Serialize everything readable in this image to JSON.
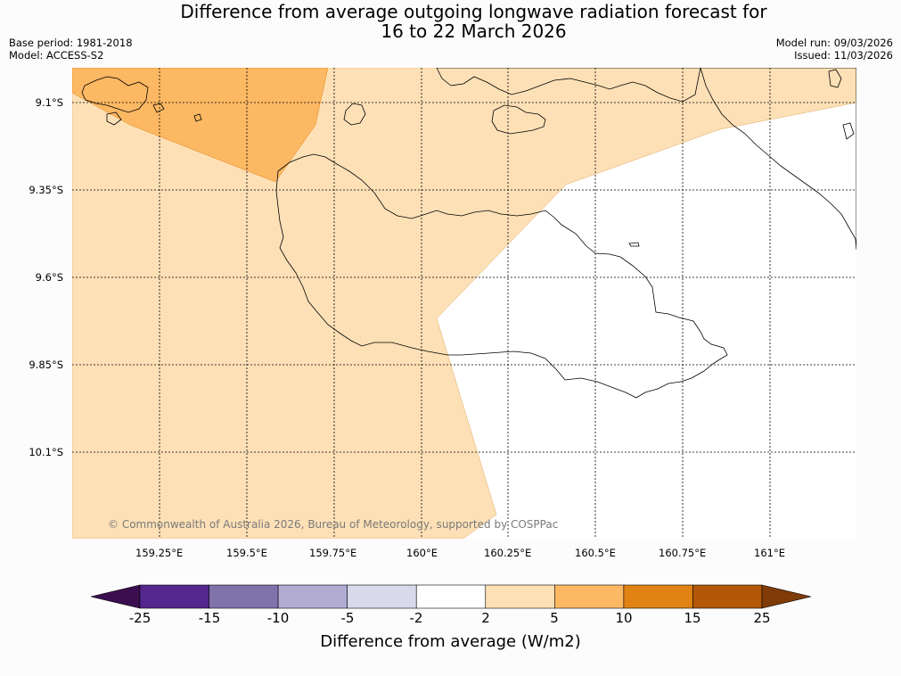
{
  "title_line1": "Difference from average outgoing longwave radiation forecast for",
  "title_line2": "16 to 22 March 2026",
  "base_period": "Base period: 1981-2018",
  "model": "Model: ACCESS-S2",
  "model_run": "Model run: 09/03/2026",
  "issued": "Issued: 11/03/2026",
  "copyright": "© Commonwealth of Australia 2026, Bureau of Meteorology, supported by COSPPac",
  "lat_labels": [
    "9.1°S",
    "9.35°S",
    "9.6°S",
    "9.85°S",
    "10.1°S"
  ],
  "lon_labels": [
    "159.25°E",
    "159.5°E",
    "159.75°E",
    "160°E",
    "160.25°E",
    "160.5°E",
    "160.75°E",
    "161°E"
  ],
  "colorbar": {
    "title": "Difference from average (W/m2)",
    "labels": [
      "-25",
      "-15",
      "-10",
      "-5",
      "-2",
      "2",
      "5",
      "10",
      "15",
      "25"
    ],
    "colors": [
      "#3b0f4f",
      "#54278f",
      "#8073ac",
      "#b2abd2",
      "#d8daeb",
      "#ffffff",
      "#fee0b6",
      "#fdb863",
      "#e08214",
      "#b35806",
      "#7f3b08"
    ]
  },
  "fill_colors": {
    "light_orange": "#fde0b6",
    "mid_orange": "#fdb863",
    "white": "#ffffff"
  }
}
